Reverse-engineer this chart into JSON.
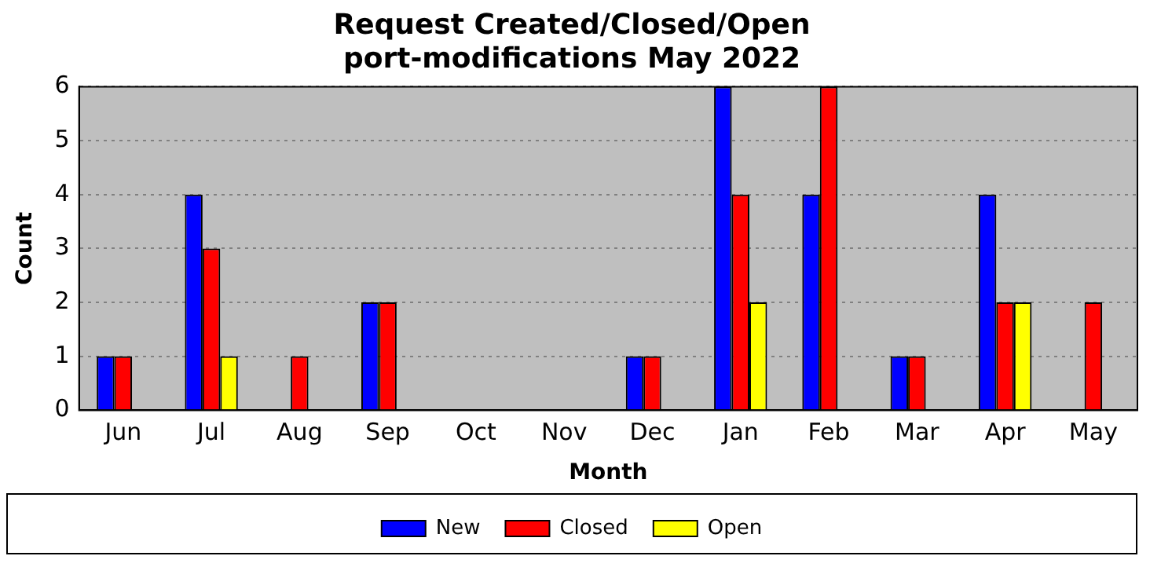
{
  "chart_data": {
    "type": "bar",
    "title": "Request Created/Closed/Open",
    "subtitle": "port-modifications May 2022",
    "xlabel": "Month",
    "ylabel": "Count",
    "categories": [
      "Jun",
      "Jul",
      "Aug",
      "Sep",
      "Oct",
      "Nov",
      "Dec",
      "Jan",
      "Feb",
      "Mar",
      "Apr",
      "May"
    ],
    "series": [
      {
        "name": "New",
        "color": "#0000ff",
        "values": [
          1,
          4,
          0,
          2,
          0,
          0,
          1,
          6,
          4,
          1,
          4,
          0
        ]
      },
      {
        "name": "Closed",
        "color": "#ff0000",
        "values": [
          1,
          3,
          1,
          2,
          0,
          0,
          1,
          4,
          6,
          1,
          2,
          2
        ]
      },
      {
        "name": "Open",
        "color": "#ffff00",
        "values": [
          0,
          1,
          0,
          0,
          0,
          0,
          0,
          2,
          0,
          0,
          2,
          0
        ]
      }
    ],
    "ylim": [
      0,
      6
    ],
    "yticks": [
      0,
      1,
      2,
      3,
      4,
      5,
      6
    ],
    "grid": "y",
    "legend": "bottom"
  }
}
